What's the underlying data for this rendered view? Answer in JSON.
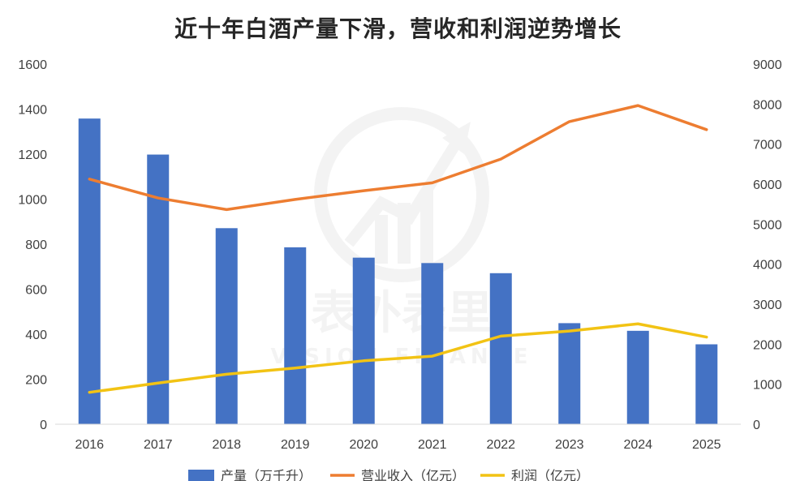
{
  "chart_data": {
    "type": "bar+line",
    "title": "近十年白酒产量下滑，营收和利润逆势增长",
    "categories": [
      "2016",
      "2017",
      "2018",
      "2019",
      "2020",
      "2021",
      "2022",
      "2023",
      "2024",
      "2025"
    ],
    "y_left": {
      "min": 0,
      "max": 1600,
      "ticks": [
        0,
        200,
        400,
        600,
        800,
        1000,
        1200,
        1400,
        1600
      ]
    },
    "y_right": {
      "min": 0,
      "max": 9000,
      "ticks": [
        0,
        1000,
        2000,
        3000,
        4000,
        5000,
        6000,
        7000,
        8000,
        9000
      ]
    },
    "series": [
      {
        "name": "产量（万千升）",
        "type": "bar",
        "axis": "left",
        "color": "#4472C4",
        "values": [
          1358,
          1198,
          871,
          786,
          740,
          716,
          671,
          449,
          415,
          355
        ]
      },
      {
        "name": "营业收入（亿元）",
        "type": "line",
        "axis": "right",
        "color": "#ED7D31",
        "values": [
          6125,
          5654,
          5364,
          5618,
          5836,
          6033,
          6626,
          7563,
          7964,
          7362
        ]
      },
      {
        "name": "利润（亿元）",
        "type": "line",
        "axis": "right",
        "color": "#F2C314",
        "values": [
          797,
          1028,
          1250,
          1404,
          1585,
          1701,
          2202,
          2328,
          2509,
          2178
        ]
      }
    ],
    "legend_position": "bottom",
    "grid": false
  },
  "watermark": {
    "name": "表外表里",
    "subtitle": "VISION FINANCE"
  }
}
